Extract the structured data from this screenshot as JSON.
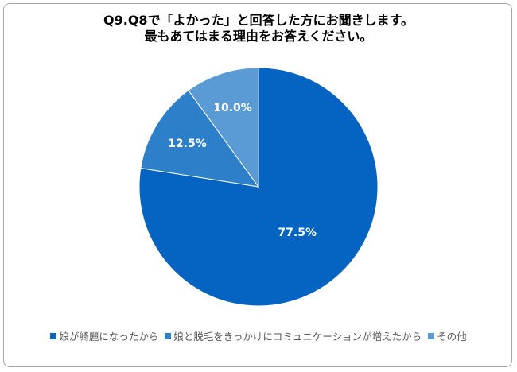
{
  "chart_data": {
    "type": "pie",
    "title": "Q9.Q8で「よかった」と回答した方にお聞きします。\n最もあてはまる理由をお答えください。",
    "title_lines": [
      "Q9.Q8で「よかった」と回答した方にお聞きします。",
      "最もあてはまる理由をお答えください。"
    ],
    "categories": [
      "娘が綺麗になったから",
      "娘と脱毛をきっかけにコミュニケーションが増えたから",
      "その他"
    ],
    "values": [
      77.5,
      12.5,
      10.0
    ],
    "data_labels": [
      "77.5%",
      "12.5%",
      "10.0%"
    ],
    "colors": [
      "#0563C1",
      "#2E7FC9",
      "#5B9BD5"
    ],
    "legend": "bottom"
  }
}
